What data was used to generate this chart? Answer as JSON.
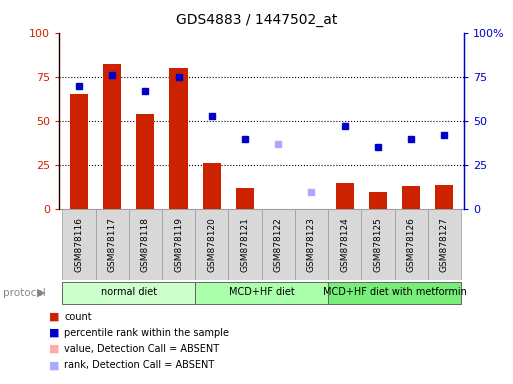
{
  "title": "GDS4883 / 1447502_at",
  "samples": [
    "GSM878116",
    "GSM878117",
    "GSM878118",
    "GSM878119",
    "GSM878120",
    "GSM878121",
    "GSM878122",
    "GSM878123",
    "GSM878124",
    "GSM878125",
    "GSM878126",
    "GSM878127"
  ],
  "bar_values": [
    65,
    82,
    54,
    80,
    26,
    12,
    0,
    0,
    15,
    10,
    13,
    14
  ],
  "bar_colors": [
    "#cc2200",
    "#cc2200",
    "#cc2200",
    "#cc2200",
    "#cc2200",
    "#cc2200",
    "#ffbbbb",
    "#cc2200",
    "#cc2200",
    "#cc2200",
    "#cc2200",
    "#cc2200"
  ],
  "percentile_values": [
    70,
    76,
    67,
    75,
    53,
    40,
    37,
    10,
    47,
    35,
    40,
    42
  ],
  "percentile_absent": [
    false,
    false,
    false,
    false,
    false,
    false,
    true,
    true,
    false,
    false,
    false,
    false
  ],
  "ylim": [
    0,
    100
  ],
  "y_ticks": [
    0,
    25,
    50,
    75,
    100
  ],
  "protocol_groups": [
    {
      "label": "normal diet",
      "start": 0,
      "end": 3,
      "color": "#ccffcc"
    },
    {
      "label": "MCD+HF diet",
      "start": 4,
      "end": 7,
      "color": "#aaffaa"
    },
    {
      "label": "MCD+HF diet with metformin",
      "start": 8,
      "end": 11,
      "color": "#77ee77"
    }
  ],
  "legend_items": [
    {
      "color": "#cc2200",
      "label": "count"
    },
    {
      "color": "#0000cc",
      "label": "percentile rank within the sample"
    },
    {
      "color": "#ffaaaa",
      "label": "value, Detection Call = ABSENT"
    },
    {
      "color": "#aaaaff",
      "label": "rank, Detection Call = ABSENT"
    }
  ],
  "left_axis_color": "#cc2200",
  "right_axis_color": "#0000cc",
  "background_color": "#ffffff",
  "plot_bg_color": "#ffffff"
}
